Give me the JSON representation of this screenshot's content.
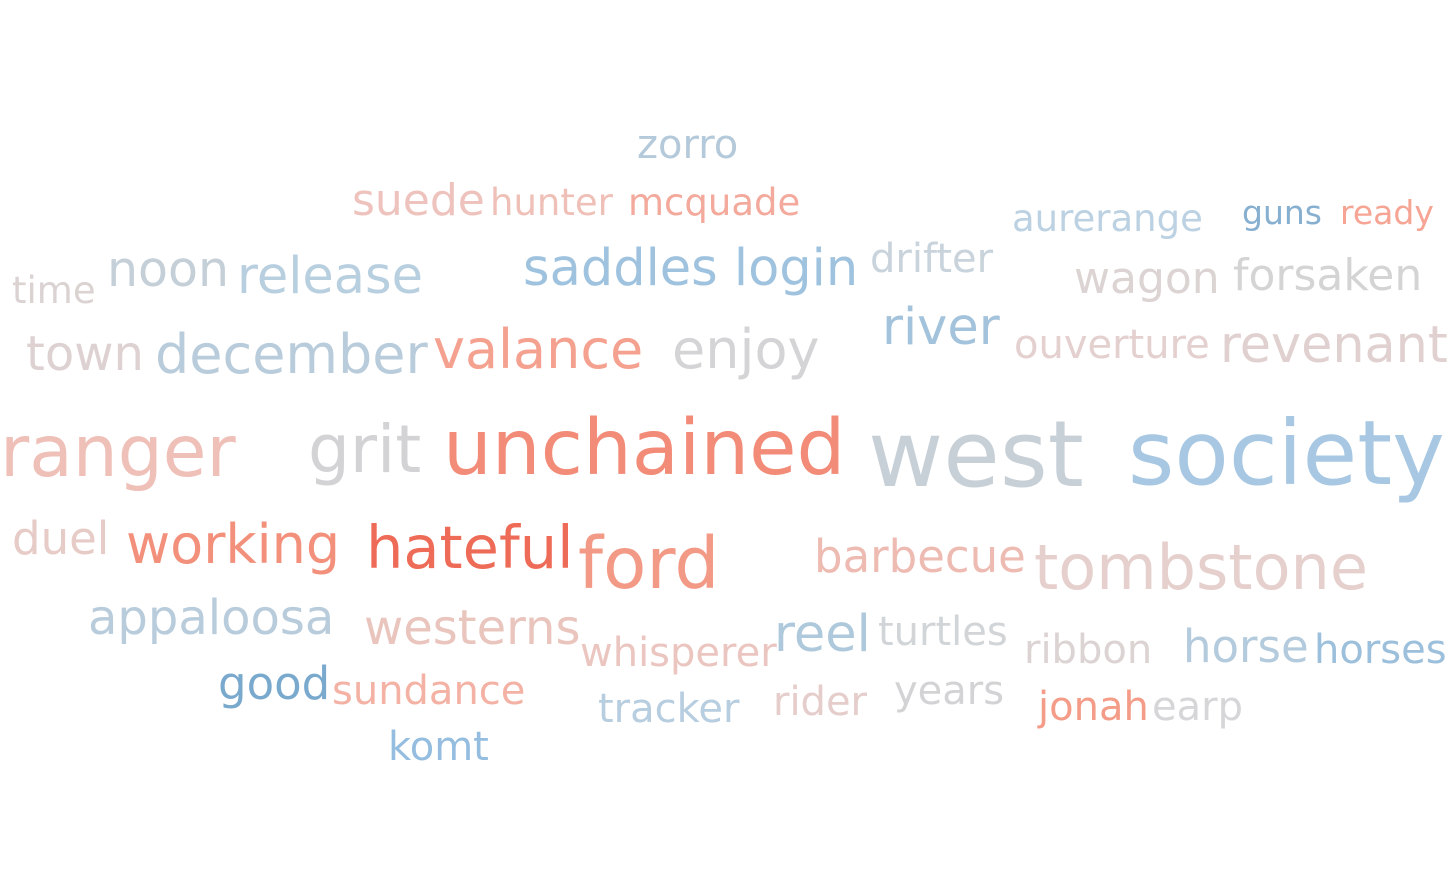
{
  "chart_data": {
    "type": "wordcloud",
    "words": [
      {
        "text": "zorro",
        "weight": 14,
        "color": "#b4cadb"
      },
      {
        "text": "suede",
        "weight": 15,
        "color": "#eec3bd"
      },
      {
        "text": "hunter",
        "weight": 13,
        "color": "#efc0b7"
      },
      {
        "text": "mcquade",
        "weight": 13,
        "color": "#f3aa9c"
      },
      {
        "text": "aurerange",
        "weight": 13,
        "color": "#bcd2e3"
      },
      {
        "text": "guns",
        "weight": 12,
        "color": "#86afd0"
      },
      {
        "text": "ready",
        "weight": 12,
        "color": "#f6a595"
      },
      {
        "text": "time",
        "weight": 13,
        "color": "#dbd2d2"
      },
      {
        "text": "noon",
        "weight": 17,
        "color": "#c4cfd8"
      },
      {
        "text": "release",
        "weight": 18,
        "color": "#b8cfe0"
      },
      {
        "text": "saddles login",
        "weight": 18,
        "color": "#9fc3df"
      },
      {
        "text": "drifter",
        "weight": 14,
        "color": "#c9d3dc"
      },
      {
        "text": "wagon",
        "weight": 15,
        "color": "#dcd3d3"
      },
      {
        "text": "forsaken",
        "weight": 15,
        "color": "#d5d4d5"
      },
      {
        "text": "town",
        "weight": 17,
        "color": "#ddd1d1"
      },
      {
        "text": "december",
        "weight": 19,
        "color": "#b9ccdb"
      },
      {
        "text": "valance",
        "weight": 19,
        "color": "#f5a190"
      },
      {
        "text": "enjoy",
        "weight": 19,
        "color": "#d4d4d6"
      },
      {
        "text": "river",
        "weight": 18,
        "color": "#a3c3dc"
      },
      {
        "text": "ouverture",
        "weight": 14,
        "color": "#e3d0cf"
      },
      {
        "text": "revenant",
        "weight": 18,
        "color": "#e0d1d0"
      },
      {
        "text": "ranger",
        "weight": 25,
        "color": "#efc0b8"
      },
      {
        "text": "grit",
        "weight": 23,
        "color": "#d3d3d6"
      },
      {
        "text": "unchained",
        "weight": 27,
        "color": "#f28b77"
      },
      {
        "text": "west",
        "weight": 32,
        "color": "#c8d0d7"
      },
      {
        "text": "society",
        "weight": 31,
        "color": "#a7c7e2"
      },
      {
        "text": "duel",
        "weight": 16,
        "color": "#e6cbc6"
      },
      {
        "text": "working",
        "weight": 19,
        "color": "#f3907b"
      },
      {
        "text": "hateful",
        "weight": 21,
        "color": "#ee6c57"
      },
      {
        "text": "ford",
        "weight": 25,
        "color": "#f39a87"
      },
      {
        "text": "barbecue",
        "weight": 16,
        "color": "#eebbb2"
      },
      {
        "text": "tombstone",
        "weight": 22,
        "color": "#e6d0ce"
      },
      {
        "text": "appaloosa",
        "weight": 17,
        "color": "#b8ccdc"
      },
      {
        "text": "westerns",
        "weight": 17,
        "color": "#e9c5be"
      },
      {
        "text": "whisperer",
        "weight": 15,
        "color": "#ebc6c0"
      },
      {
        "text": "reel",
        "weight": 18,
        "color": "#aec8dc"
      },
      {
        "text": "turtles",
        "weight": 15,
        "color": "#d2d5d8"
      },
      {
        "text": "ribbon",
        "weight": 14,
        "color": "#dcd3d3"
      },
      {
        "text": "horse",
        "weight": 16,
        "color": "#b3cbdd"
      },
      {
        "text": "horses",
        "weight": 14,
        "color": "#9cc0dc"
      },
      {
        "text": "good",
        "weight": 16,
        "color": "#7aa9ce"
      },
      {
        "text": "sundance",
        "weight": 14,
        "color": "#f4b2a5"
      },
      {
        "text": "tracker",
        "weight": 14,
        "color": "#b7cde0"
      },
      {
        "text": "rider",
        "weight": 14,
        "color": "#e4cdca"
      },
      {
        "text": "years",
        "weight": 14,
        "color": "#d3d3d5"
      },
      {
        "text": "jonah",
        "weight": 14,
        "color": "#f49c88"
      },
      {
        "text": "earp",
        "weight": 14,
        "color": "#d6d5d7"
      },
      {
        "text": "komt",
        "weight": 14,
        "color": "#94bde0"
      }
    ]
  }
}
